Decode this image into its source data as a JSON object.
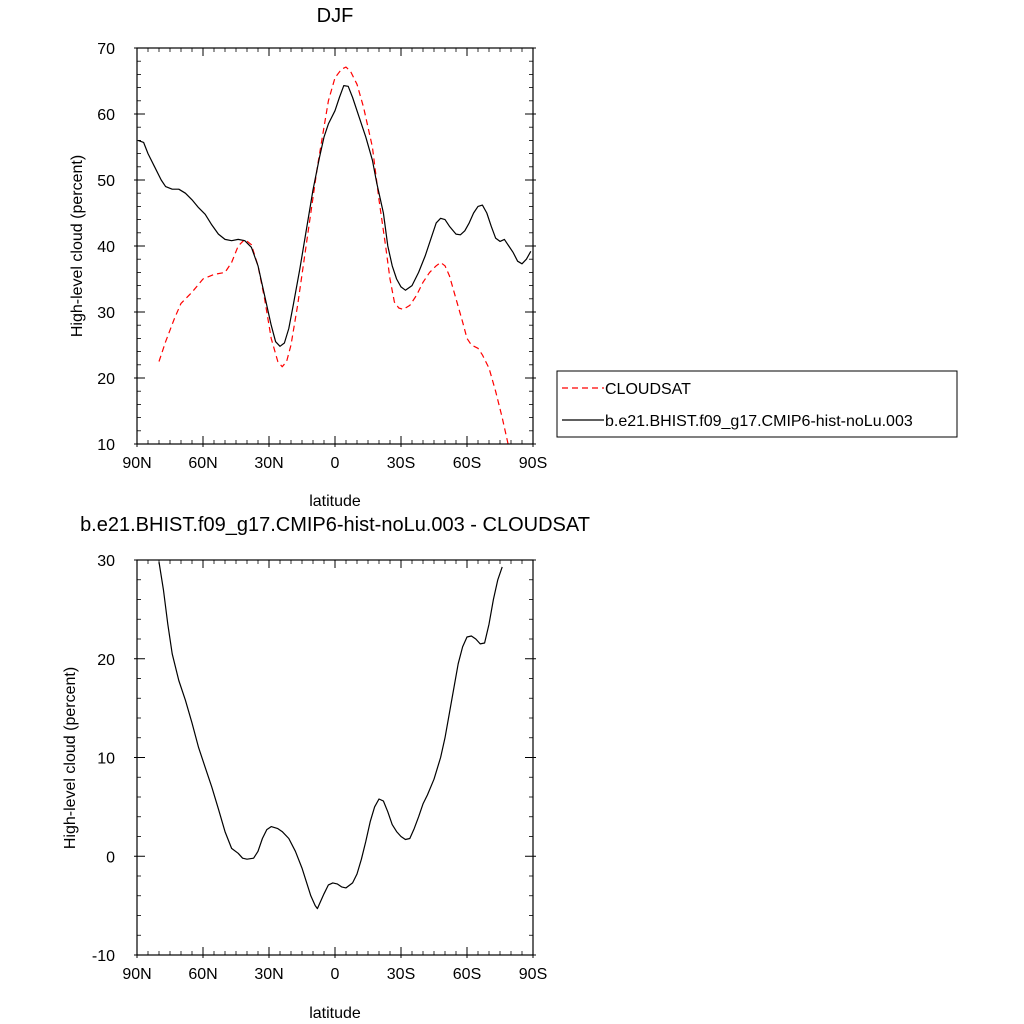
{
  "chart_data": [
    {
      "type": "line",
      "title": "DJF",
      "xlabel": "latitude",
      "ylabel": "High-level cloud (percent)",
      "xlim": [
        -90,
        90
      ],
      "ylim": [
        10,
        70
      ],
      "x_ticks": [
        {
          "value": -90,
          "label": "90N"
        },
        {
          "value": -60,
          "label": "60N"
        },
        {
          "value": -30,
          "label": "30N"
        },
        {
          "value": 0,
          "label": "0"
        },
        {
          "value": 30,
          "label": "30S"
        },
        {
          "value": 60,
          "label": "60S"
        },
        {
          "value": 90,
          "label": "90S"
        }
      ],
      "y_ticks": [
        {
          "value": 10,
          "label": "10"
        },
        {
          "value": 20,
          "label": "20"
        },
        {
          "value": 30,
          "label": "30"
        },
        {
          "value": 40,
          "label": "40"
        },
        {
          "value": 50,
          "label": "50"
        },
        {
          "value": 60,
          "label": "60"
        },
        {
          "value": 70,
          "label": "70"
        }
      ],
      "legend_position": "right",
      "series": [
        {
          "name": "CLOUDSAT",
          "color": "#ff0000",
          "dash": true,
          "points": [
            [
              -80,
              22.5
            ],
            [
              -77,
              25.5
            ],
            [
              -73,
              29
            ],
            [
              -70,
              31.3
            ],
            [
              -65,
              33
            ],
            [
              -60,
              35
            ],
            [
              -55,
              35.7
            ],
            [
              -50,
              36
            ],
            [
              -47,
              37.5
            ],
            [
              -44,
              40
            ],
            [
              -41,
              41
            ],
            [
              -38,
              40.2
            ],
            [
              -35,
              37
            ],
            [
              -32,
              32
            ],
            [
              -29,
              26
            ],
            [
              -26,
              22.5
            ],
            [
              -24,
              21.7
            ],
            [
              -22,
              22.5
            ],
            [
              -20,
              25
            ],
            [
              -17,
              31
            ],
            [
              -14,
              38
            ],
            [
              -11,
              45
            ],
            [
              -8,
              52
            ],
            [
              -5,
              58
            ],
            [
              -3,
              62
            ],
            [
              0,
              65.5
            ],
            [
              3,
              66.8
            ],
            [
              5,
              67.1
            ],
            [
              7,
              66.5
            ],
            [
              10,
              64.5
            ],
            [
              13,
              61
            ],
            [
              17,
              55
            ],
            [
              20,
              47
            ],
            [
              23,
              40
            ],
            [
              25,
              35
            ],
            [
              27,
              31.5
            ],
            [
              29,
              30.6
            ],
            [
              31,
              30.4
            ],
            [
              34,
              31
            ],
            [
              37,
              32.5
            ],
            [
              40,
              34.5
            ],
            [
              43,
              36
            ],
            [
              46,
              37
            ],
            [
              48,
              37.5
            ],
            [
              50,
              37
            ],
            [
              52,
              35.5
            ],
            [
              55,
              32
            ],
            [
              58,
              28.5
            ],
            [
              60,
              26
            ],
            [
              62,
              25
            ],
            [
              65,
              24.5
            ],
            [
              67,
              23.5
            ],
            [
              70,
              21.5
            ],
            [
              73,
              18
            ],
            [
              76,
              14
            ],
            [
              78,
              11
            ],
            [
              79,
              9.5
            ]
          ]
        },
        {
          "name": "b.e21.BHIST.f09_g17.CMIP6-hist-noLu.003",
          "color": "#000000",
          "dash": false,
          "points": [
            [
              -89.5,
              56
            ],
            [
              -87,
              55.7
            ],
            [
              -85,
              54
            ],
            [
              -82,
              52
            ],
            [
              -79,
              50
            ],
            [
              -77,
              49
            ],
            [
              -74,
              48.6
            ],
            [
              -71,
              48.6
            ],
            [
              -68,
              48
            ],
            [
              -65,
              47
            ],
            [
              -62,
              45.8
            ],
            [
              -59,
              44.8
            ],
            [
              -56,
              43.2
            ],
            [
              -53,
              41.8
            ],
            [
              -50,
              41
            ],
            [
              -47,
              40.8
            ],
            [
              -44,
              41
            ],
            [
              -41,
              40.8
            ],
            [
              -38,
              39.8
            ],
            [
              -35,
              37
            ],
            [
              -32,
              32.5
            ],
            [
              -29,
              28
            ],
            [
              -27,
              25.5
            ],
            [
              -25,
              24.8
            ],
            [
              -23,
              25.3
            ],
            [
              -21,
              27.5
            ],
            [
              -19,
              31
            ],
            [
              -16,
              36.5
            ],
            [
              -13,
              42.5
            ],
            [
              -10,
              48.5
            ],
            [
              -7,
              53.5
            ],
            [
              -5,
              56.5
            ],
            [
              -3,
              58.5
            ],
            [
              0,
              60.5
            ],
            [
              2,
              62.5
            ],
            [
              4,
              64.3
            ],
            [
              6,
              64.2
            ],
            [
              8,
              62.5
            ],
            [
              11,
              59.5
            ],
            [
              14,
              56.5
            ],
            [
              17,
              53
            ],
            [
              19,
              49.5
            ],
            [
              22,
              45
            ],
            [
              24,
              40
            ],
            [
              26,
              37
            ],
            [
              28,
              35
            ],
            [
              30,
              33.8
            ],
            [
              32,
              33.3
            ],
            [
              35,
              34
            ],
            [
              38,
              36
            ],
            [
              41,
              38.5
            ],
            [
              44,
              41.5
            ],
            [
              46,
              43.5
            ],
            [
              48,
              44.2
            ],
            [
              50,
              44
            ],
            [
              52,
              43
            ],
            [
              55,
              41.8
            ],
            [
              57,
              41.7
            ],
            [
              59,
              42.3
            ],
            [
              61,
              43.5
            ],
            [
              63,
              45
            ],
            [
              65,
              46
            ],
            [
              67,
              46.2
            ],
            [
              69,
              45
            ],
            [
              71,
              43
            ],
            [
              73,
              41.2
            ],
            [
              75,
              40.7
            ],
            [
              77,
              41
            ],
            [
              79,
              40
            ],
            [
              81,
              39
            ],
            [
              83,
              37.7
            ],
            [
              85,
              37.3
            ],
            [
              87,
              38
            ],
            [
              89,
              39.2
            ]
          ]
        }
      ]
    },
    {
      "type": "line",
      "title": "b.e21.BHIST.f09_g17.CMIP6-hist-noLu.003 - CLOUDSAT",
      "xlabel": "latitude",
      "ylabel": "High-level cloud (percent)",
      "xlim": [
        -90,
        90
      ],
      "ylim": [
        -10,
        30
      ],
      "x_ticks": [
        {
          "value": -90,
          "label": "90N"
        },
        {
          "value": -60,
          "label": "60N"
        },
        {
          "value": -30,
          "label": "30N"
        },
        {
          "value": 0,
          "label": "0"
        },
        {
          "value": 30,
          "label": "30S"
        },
        {
          "value": 60,
          "label": "60S"
        },
        {
          "value": 90,
          "label": "90S"
        }
      ],
      "y_ticks": [
        {
          "value": -10,
          "label": "-10"
        },
        {
          "value": 0,
          "label": "0"
        },
        {
          "value": 10,
          "label": "10"
        },
        {
          "value": 20,
          "label": "20"
        },
        {
          "value": 30,
          "label": "30"
        }
      ],
      "series": [
        {
          "color": "#000000",
          "dash": false,
          "points": [
            [
              -80,
              29.8
            ],
            [
              -78,
              27
            ],
            [
              -76,
              23.5
            ],
            [
              -74,
              20.5
            ],
            [
              -71,
              17.8
            ],
            [
              -68,
              15.8
            ],
            [
              -65,
              13.5
            ],
            [
              -62,
              11
            ],
            [
              -59,
              9
            ],
            [
              -56,
              7
            ],
            [
              -53,
              4.8
            ],
            [
              -50,
              2.5
            ],
            [
              -47,
              0.8
            ],
            [
              -44,
              0.3
            ],
            [
              -42,
              -0.2
            ],
            [
              -40,
              -0.3
            ],
            [
              -37,
              -0.2
            ],
            [
              -35,
              0.5
            ],
            [
              -33,
              1.8
            ],
            [
              -31,
              2.7
            ],
            [
              -29,
              3
            ],
            [
              -26,
              2.8
            ],
            [
              -24,
              2.5
            ],
            [
              -21,
              1.8
            ],
            [
              -18,
              0.5
            ],
            [
              -15,
              -1.2
            ],
            [
              -13,
              -2.6
            ],
            [
              -11,
              -4
            ],
            [
              -9,
              -5
            ],
            [
              -8,
              -5.3
            ],
            [
              -7,
              -4.8
            ],
            [
              -5,
              -3.8
            ],
            [
              -3,
              -2.9
            ],
            [
              -1,
              -2.7
            ],
            [
              1,
              -2.8
            ],
            [
              3,
              -3.1
            ],
            [
              5,
              -3.2
            ],
            [
              8,
              -2.7
            ],
            [
              10,
              -1.8
            ],
            [
              12,
              -0.3
            ],
            [
              14,
              1.5
            ],
            [
              16,
              3.5
            ],
            [
              18,
              5
            ],
            [
              20,
              5.8
            ],
            [
              22,
              5.6
            ],
            [
              24,
              4.5
            ],
            [
              26,
              3.2
            ],
            [
              28,
              2.5
            ],
            [
              30,
              2
            ],
            [
              32,
              1.7
            ],
            [
              34,
              1.8
            ],
            [
              36,
              2.8
            ],
            [
              38,
              4
            ],
            [
              40,
              5.3
            ],
            [
              42,
              6.2
            ],
            [
              45,
              7.8
            ],
            [
              48,
              10
            ],
            [
              50,
              12
            ],
            [
              52,
              14.5
            ],
            [
              54,
              17
            ],
            [
              56,
              19.5
            ],
            [
              58,
              21.2
            ],
            [
              60,
              22.2
            ],
            [
              62,
              22.3
            ],
            [
              64,
              22
            ],
            [
              66,
              21.5
            ],
            [
              68,
              21.6
            ],
            [
              70,
              23.5
            ],
            [
              72,
              26
            ],
            [
              74,
              28
            ],
            [
              76,
              29.3
            ]
          ]
        }
      ]
    }
  ]
}
